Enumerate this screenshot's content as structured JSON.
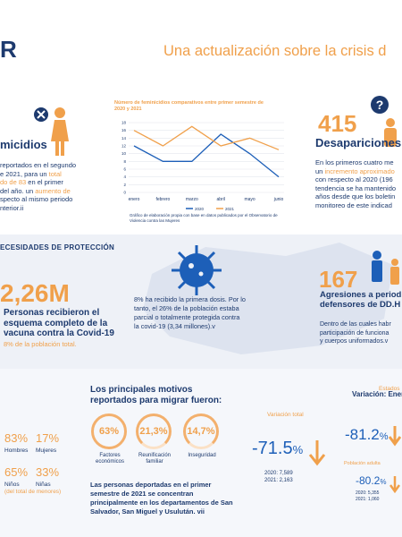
{
  "header": {
    "logo_text": "R",
    "title": "Una actualización sobre la crisis d"
  },
  "femicidios": {
    "heading": "micidios",
    "body_prefix": "reportados en el segundo\ne 2021, para un ",
    "body_orange1": "total",
    "body_line3_orange": "do de 83",
    "body_line3_rest": " en el primer",
    "body_line4": "del año. un ",
    "body_line4_orange": "aumento de",
    "body_line5": "specto al mismo periodo",
    "body_line6": "nterior.ii"
  },
  "line_chart": {
    "title": "Número de feminicidios comparativos entre primer semestre de 2020 y 2021",
    "footnote": "Gráfico de elaboración propia con base en datos publicados por el Observatorio de Violencia contra las Mujeres"
  },
  "chart_data": {
    "type": "line",
    "categories": [
      "enero",
      "febrero",
      "marzo",
      "abril",
      "mayo",
      "junio"
    ],
    "y_ticks": [
      "18",
      "16",
      "14",
      "12",
      "10",
      "8",
      "6",
      "4",
      "2",
      "0"
    ],
    "ylim": [
      0,
      18
    ],
    "series": [
      {
        "name": "2020",
        "color": "#1d5fb8",
        "values": [
          12,
          8,
          8,
          15,
          10,
          4
        ]
      },
      {
        "name": "2021",
        "color": "#f0a04b",
        "values": [
          16,
          12,
          17,
          12,
          14,
          11
        ]
      }
    ],
    "legend_placement": "bottom"
  },
  "desapariciones": {
    "number": "415",
    "heading": "Desapariciones",
    "line1": "En los primeros cuatro me",
    "line2_prefix": "un ",
    "line2_orange": "incremento aproximado",
    "line3": "con respecto al 2020 (196",
    "line4": "tendencia se ha mantenido",
    "line5": "años desde que los boletin",
    "line6": "monitoreo de este indicad"
  },
  "proteccion": {
    "section_title": "ECESIDADES DE PROTECCIÓN",
    "number": "2,26M",
    "line1": "Personas recibieron el",
    "line2": "esquema completo de la",
    "line3": "vacuna contra la Covid-19",
    "line4_orange": "8% de la población total.",
    "mid_text": "8% ha recibido la primera dosis. Por lo tanto, el 26% de la población estaba parcial o totalmente protegida contra la covid-19 (3,34 millones).v"
  },
  "agresiones": {
    "number": "167",
    "heading_line1": "Agresiones a period",
    "heading_line2": "defensores de DD.H",
    "line1": "Dentro de las cuales habr",
    "line2": "participación de funciona",
    "line3": "y cuerpos uniformados.v"
  },
  "demografia": {
    "p1": "83%",
    "l1": "Hombres",
    "p2": "17%",
    "l2": "Mujeres",
    "p3": "65%",
    "l3": "Niños",
    "p4": "33%",
    "l4": "Niñas",
    "note": "(del total de menores)"
  },
  "motivos": {
    "title_line1": "Los principales motivos",
    "title_line2": "reportados para migrar fueron:",
    "items": [
      {
        "value": "63%",
        "label": "Factores económicos"
      },
      {
        "value": "21,3%",
        "label": "Reunificación familiar"
      },
      {
        "value": "14,7%",
        "label": "Inseguridad"
      }
    ],
    "bottom_text": "Las personas deportadas en el primer semestre de 2021 se concentran principalmente en los departamentos de San Salvador, San Miguel y Usulután. vii"
  },
  "variacion": {
    "header": "Variación: Enero",
    "total_label": "Variación total",
    "total_value": "-71.5",
    "total_pct": "%",
    "y2020": "2020: 7,589",
    "y2021": "2021: 2,163",
    "estados_label": "Estados",
    "estados_value": "-81.2",
    "estados_pct": "%",
    "adulta_label": "Población adulta",
    "adulta_value": "-80.2",
    "adulta_pct": "%",
    "a2020": "2020: 5,355",
    "a2021": "2021: 1,060"
  }
}
